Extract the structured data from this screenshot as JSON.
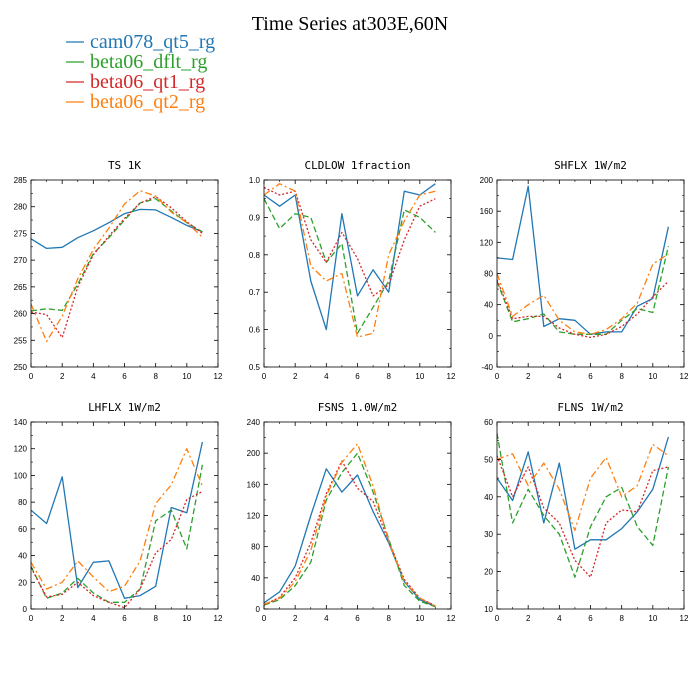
{
  "page_title": "Time Series at303E,60N",
  "legend": [
    {
      "name": "cam078_qt5_rg",
      "color": "#1f77b4",
      "dash": "solid"
    },
    {
      "name": "beta06_dflt_rg",
      "color": "#2ca02c",
      "dash": "dashed"
    },
    {
      "name": "beta06_qt1_rg",
      "color": "#d62728",
      "dash": "dotted"
    },
    {
      "name": "beta06_qt2_rg",
      "color": "#ff7f0e",
      "dash": "dashdot"
    }
  ],
  "chart_data": [
    {
      "type": "line",
      "title": "TS  1K",
      "x": [
        0,
        1,
        2,
        3,
        4,
        5,
        6,
        7,
        8,
        9,
        10,
        11
      ],
      "xlim": [
        0,
        12
      ],
      "xticks": [
        0,
        2,
        4,
        6,
        8,
        10,
        12
      ],
      "ylim": [
        250,
        285
      ],
      "yticks": [
        250,
        255,
        260,
        265,
        270,
        275,
        280,
        285
      ],
      "series": [
        {
          "name": "cam078_qt5_rg",
          "values": [
            274.0,
            272.2,
            272.4,
            274.2,
            275.5,
            277.0,
            278.7,
            279.5,
            279.4,
            278.0,
            276.5,
            275.3
          ]
        },
        {
          "name": "beta06_dflt_rg",
          "values": [
            260.5,
            260.9,
            260.6,
            265.5,
            271.2,
            274.2,
            277.5,
            280.7,
            281.5,
            279.2,
            277.0,
            275.3
          ]
        },
        {
          "name": "beta06_qt1_rg",
          "values": [
            260.3,
            259.8,
            255.5,
            265.0,
            271.0,
            274.5,
            277.8,
            280.7,
            281.9,
            279.8,
            277.2,
            275.0
          ]
        },
        {
          "name": "beta06_qt2_rg",
          "values": [
            261.8,
            254.8,
            259.5,
            266.5,
            272.0,
            276.0,
            280.5,
            283.0,
            282.0,
            279.0,
            277.0,
            274.3
          ]
        }
      ]
    },
    {
      "type": "line",
      "title": "CLDLOW  1fraction",
      "x": [
        0,
        1,
        2,
        3,
        4,
        5,
        6,
        7,
        8,
        9,
        10,
        11
      ],
      "xlim": [
        0,
        12
      ],
      "xticks": [
        0,
        2,
        4,
        6,
        8,
        10,
        12
      ],
      "ylim": [
        0.5,
        1.0
      ],
      "yticks": [
        0.5,
        0.6,
        0.7,
        0.8,
        0.9,
        1.0
      ],
      "series": [
        {
          "name": "cam078_qt5_rg",
          "values": [
            0.96,
            0.93,
            0.96,
            0.73,
            0.6,
            0.91,
            0.69,
            0.76,
            0.7,
            0.97,
            0.96,
            0.99
          ]
        },
        {
          "name": "beta06_dflt_rg",
          "values": [
            0.95,
            0.87,
            0.91,
            0.9,
            0.78,
            0.83,
            0.59,
            0.66,
            0.73,
            0.92,
            0.9,
            0.86
          ]
        },
        {
          "name": "beta06_qt1_rg",
          "values": [
            0.98,
            0.96,
            0.97,
            0.84,
            0.78,
            0.86,
            0.79,
            0.69,
            0.72,
            0.84,
            0.93,
            0.95
          ]
        },
        {
          "name": "beta06_qt2_rg",
          "values": [
            0.96,
            0.99,
            0.97,
            0.77,
            0.73,
            0.75,
            0.58,
            0.59,
            0.8,
            0.89,
            0.96,
            0.97
          ]
        }
      ]
    },
    {
      "type": "line",
      "title": "SHFLX  1W/m2",
      "x": [
        0,
        1,
        2,
        3,
        4,
        5,
        6,
        7,
        8,
        9,
        10,
        11
      ],
      "xlim": [
        0,
        12
      ],
      "xticks": [
        0,
        2,
        4,
        6,
        8,
        10,
        12
      ],
      "ylim": [
        -40,
        200
      ],
      "yticks": [
        -40,
        0,
        40,
        80,
        120,
        160,
        200
      ],
      "series": [
        {
          "name": "cam078_qt5_rg",
          "values": [
            100,
            98,
            192,
            12,
            22,
            20,
            2,
            5,
            5,
            38,
            48,
            140
          ]
        },
        {
          "name": "beta06_dflt_rg",
          "values": [
            70,
            18,
            22,
            28,
            5,
            2,
            2,
            2,
            20,
            35,
            30,
            115
          ]
        },
        {
          "name": "beta06_qt1_rg",
          "values": [
            72,
            22,
            25,
            25,
            10,
            2,
            -2,
            2,
            12,
            28,
            50,
            70
          ]
        },
        {
          "name": "beta06_qt2_rg",
          "values": [
            80,
            25,
            40,
            52,
            20,
            5,
            2,
            8,
            22,
            42,
            92,
            105
          ]
        }
      ]
    },
    {
      "type": "line",
      "title": "LHFLX  1W/m2",
      "x": [
        0,
        1,
        2,
        3,
        4,
        5,
        6,
        7,
        8,
        9,
        10,
        11
      ],
      "xlim": [
        0,
        12
      ],
      "xticks": [
        0,
        2,
        4,
        6,
        8,
        10,
        12
      ],
      "ylim": [
        0,
        140
      ],
      "yticks": [
        0,
        20,
        40,
        60,
        80,
        100,
        120,
        140
      ],
      "series": [
        {
          "name": "cam078_qt5_rg",
          "values": [
            74,
            64,
            99,
            16,
            35,
            36,
            8,
            10,
            17,
            76,
            72,
            125
          ]
        },
        {
          "name": "beta06_dflt_rg",
          "values": [
            32,
            8,
            12,
            23,
            12,
            5,
            5,
            15,
            66,
            74,
            45,
            108
          ]
        },
        {
          "name": "beta06_qt1_rg",
          "values": [
            31,
            9,
            11,
            20,
            10,
            5,
            1,
            15,
            42,
            52,
            82,
            88
          ]
        },
        {
          "name": "beta06_qt2_rg",
          "values": [
            35,
            15,
            20,
            36,
            24,
            13,
            17,
            36,
            79,
            93,
            120,
            92
          ]
        }
      ]
    },
    {
      "type": "line",
      "title": "FSNS  1.0W/m2",
      "x": [
        0,
        1,
        2,
        3,
        4,
        5,
        6,
        7,
        8,
        9,
        10,
        11
      ],
      "xlim": [
        0,
        12
      ],
      "xticks": [
        0,
        2,
        4,
        6,
        8,
        10,
        12
      ],
      "ylim": [
        0,
        240
      ],
      "yticks": [
        0,
        40,
        80,
        120,
        160,
        200,
        240
      ],
      "series": [
        {
          "name": "cam078_qt5_rg",
          "values": [
            8,
            22,
            55,
            120,
            180,
            150,
            172,
            125,
            85,
            35,
            12,
            3
          ]
        },
        {
          "name": "beta06_dflt_rg",
          "values": [
            5,
            12,
            30,
            60,
            140,
            175,
            200,
            150,
            90,
            30,
            10,
            3
          ]
        },
        {
          "name": "beta06_qt1_rg",
          "values": [
            5,
            15,
            40,
            85,
            148,
            190,
            155,
            138,
            87,
            38,
            14,
            4
          ]
        },
        {
          "name": "beta06_qt2_rg",
          "values": [
            6,
            14,
            35,
            75,
            145,
            188,
            212,
            158,
            87,
            35,
            14,
            4
          ]
        }
      ]
    },
    {
      "type": "line",
      "title": "FLNS  1W/m2",
      "x": [
        0,
        1,
        2,
        3,
        4,
        5,
        6,
        7,
        8,
        9,
        10,
        11
      ],
      "xlim": [
        0,
        12
      ],
      "xticks": [
        0,
        2,
        4,
        6,
        8,
        10,
        12
      ],
      "ylim": [
        10,
        60
      ],
      "yticks": [
        10,
        20,
        30,
        40,
        50,
        60
      ],
      "series": [
        {
          "name": "cam078_qt5_rg",
          "values": [
            45,
            39,
            52,
            33,
            49,
            26,
            28.5,
            28.5,
            31.5,
            36,
            42,
            56
          ]
        },
        {
          "name": "beta06_dflt_rg",
          "values": [
            57,
            33,
            42,
            35,
            30,
            18.5,
            32,
            40,
            42.5,
            32,
            27,
            48
          ]
        },
        {
          "name": "beta06_qt1_rg",
          "values": [
            51,
            40,
            48,
            37,
            33,
            23,
            18.5,
            33,
            36.5,
            36,
            47,
            48
          ]
        },
        {
          "name": "beta06_qt2_rg",
          "values": [
            50,
            51.5,
            43,
            49,
            42,
            31,
            45,
            50.5,
            40,
            43,
            54,
            51
          ]
        }
      ]
    }
  ]
}
